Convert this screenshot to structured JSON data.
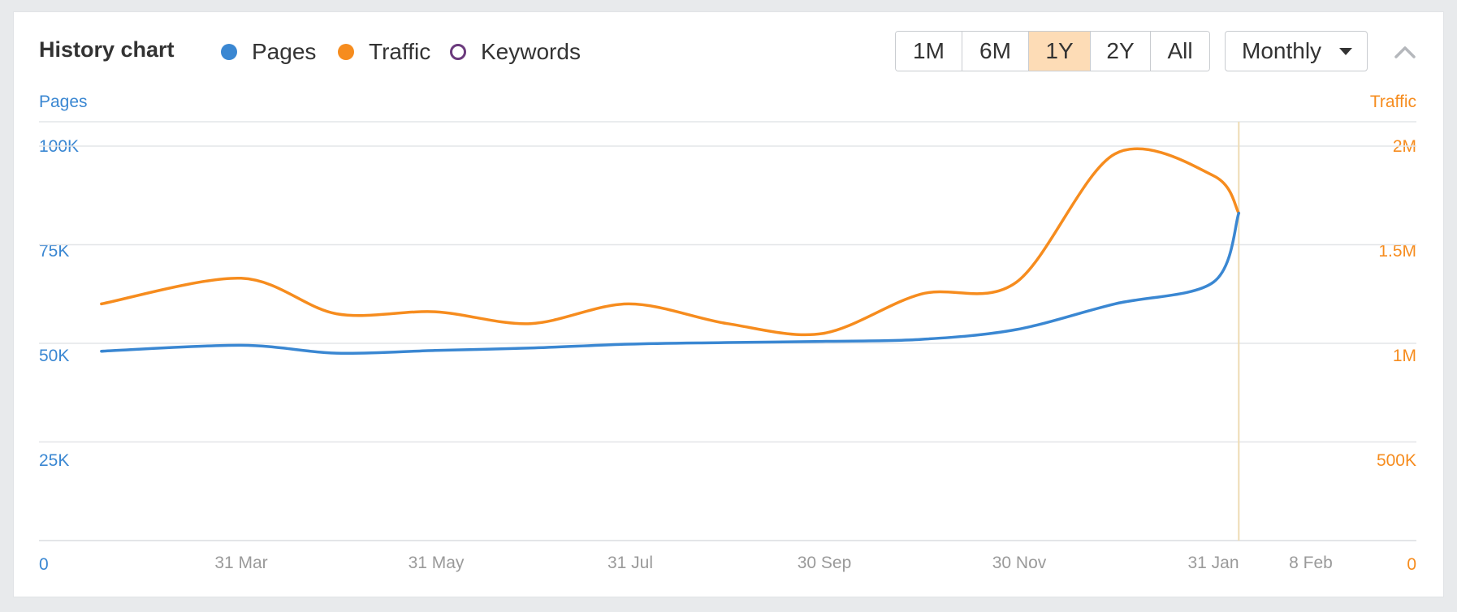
{
  "header": {
    "title": "History chart",
    "legend": [
      {
        "label": "Pages",
        "color": "#3a87d2",
        "filled": true
      },
      {
        "label": "Traffic",
        "color": "#f68c1e",
        "filled": true
      },
      {
        "label": "Keywords",
        "color": "#6b3a7d",
        "filled": false
      }
    ],
    "ranges": [
      "1M",
      "6M",
      "1Y",
      "2Y",
      "All"
    ],
    "active_range": "1Y",
    "interval": "Monthly"
  },
  "colors": {
    "pages": "#3a87d2",
    "traffic": "#f68c1e",
    "grid": "#e3e5e8",
    "marker": "#eedcb4",
    "active_range_bg": "#fddcb6"
  },
  "chart_data": {
    "type": "line",
    "left_axis": {
      "label": "Pages",
      "ticks": [
        "0",
        "25K",
        "50K",
        "75K",
        "100K"
      ],
      "ylim": [
        0,
        100000
      ]
    },
    "right_axis": {
      "label": "Traffic",
      "ticks": [
        "0",
        "500K",
        "1M",
        "1.5M",
        "2M"
      ],
      "ylim": [
        0,
        2000000
      ]
    },
    "x_ticks": [
      "31 Mar",
      "31 May",
      "31 Jul",
      "30 Sep",
      "30 Nov",
      "31 Jan",
      "8 Feb"
    ],
    "x": [
      "2023-02-15",
      "2023-03-31",
      "2023-04-30",
      "2023-05-31",
      "2023-06-30",
      "2023-07-31",
      "2023-08-31",
      "2023-09-30",
      "2023-10-31",
      "2023-11-30",
      "2023-12-31",
      "2024-01-31",
      "2024-02-08"
    ],
    "series": [
      {
        "name": "Pages",
        "axis": "left",
        "values": [
          48000,
          49500,
          47500,
          48200,
          48800,
          49800,
          50200,
          50500,
          51000,
          53500,
          60000,
          65500,
          83000
        ]
      },
      {
        "name": "Traffic",
        "axis": "right",
        "values": [
          1200000,
          1330000,
          1150000,
          1160000,
          1100000,
          1200000,
          1100000,
          1050000,
          1250000,
          1310000,
          1960000,
          1850000,
          1660000
        ]
      }
    ],
    "marker_date": "2024-02-08",
    "grid": true,
    "legend_placement": "top"
  }
}
